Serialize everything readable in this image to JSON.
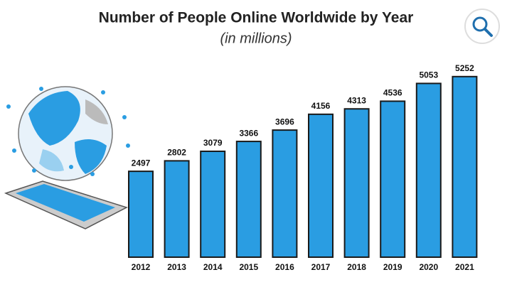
{
  "chart_data": {
    "type": "bar",
    "title": "Number of People Online Worldwide by Year",
    "subtitle": "(in millions)",
    "categories": [
      "2012",
      "2013",
      "2014",
      "2015",
      "2016",
      "2017",
      "2018",
      "2019",
      "2020",
      "2021"
    ],
    "values": [
      2497,
      2802,
      3079,
      3366,
      3696,
      4156,
      4313,
      4536,
      5053,
      5252
    ],
    "color": "#2a9de2"
  }
}
